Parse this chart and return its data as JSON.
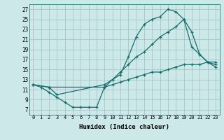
{
  "xlabel": "Humidex (Indice chaleur)",
  "bg_color": "#cce8e8",
  "line_color": "#1a6b6b",
  "xlim": [
    -0.5,
    23.5
  ],
  "ylim": [
    6.0,
    28.0
  ],
  "xticks": [
    0,
    1,
    2,
    3,
    4,
    5,
    6,
    7,
    8,
    9,
    10,
    11,
    12,
    13,
    14,
    15,
    16,
    17,
    18,
    19,
    20,
    21,
    22,
    23
  ],
  "yticks": [
    7,
    9,
    11,
    13,
    15,
    17,
    19,
    21,
    23,
    25,
    27
  ],
  "line1_x": [
    0,
    1,
    2,
    3,
    4,
    5,
    6,
    7,
    8,
    9,
    10,
    11,
    12,
    13,
    14,
    15,
    16,
    17,
    18,
    19,
    20,
    21,
    22,
    23
  ],
  "line1_y": [
    12,
    11.5,
    10.5,
    9.5,
    8.5,
    7.5,
    7.5,
    7.5,
    7.5,
    11.5,
    13,
    14,
    17.5,
    21.5,
    24.0,
    25.0,
    25.5,
    27.0,
    26.5,
    25.0,
    19.5,
    18.0,
    16.5,
    15.5
  ],
  "line2_x": [
    0,
    2,
    3,
    9,
    10,
    11,
    12,
    13,
    14,
    15,
    16,
    17,
    18,
    19,
    20,
    21,
    22,
    23
  ],
  "line2_y": [
    12,
    11.5,
    10.0,
    12.0,
    13.0,
    14.5,
    16.0,
    17.5,
    18.5,
    20.0,
    21.5,
    22.5,
    23.5,
    25.0,
    22.5,
    18.0,
    16.5,
    16.0
  ],
  "line3_x": [
    0,
    2,
    9,
    10,
    11,
    12,
    13,
    14,
    15,
    16,
    17,
    18,
    19,
    20,
    21,
    22,
    23
  ],
  "line3_y": [
    12,
    11.5,
    11.5,
    12.0,
    12.5,
    13.0,
    13.5,
    14.0,
    14.5,
    14.5,
    15.0,
    15.5,
    16.0,
    16.0,
    16.0,
    16.5,
    16.5
  ]
}
